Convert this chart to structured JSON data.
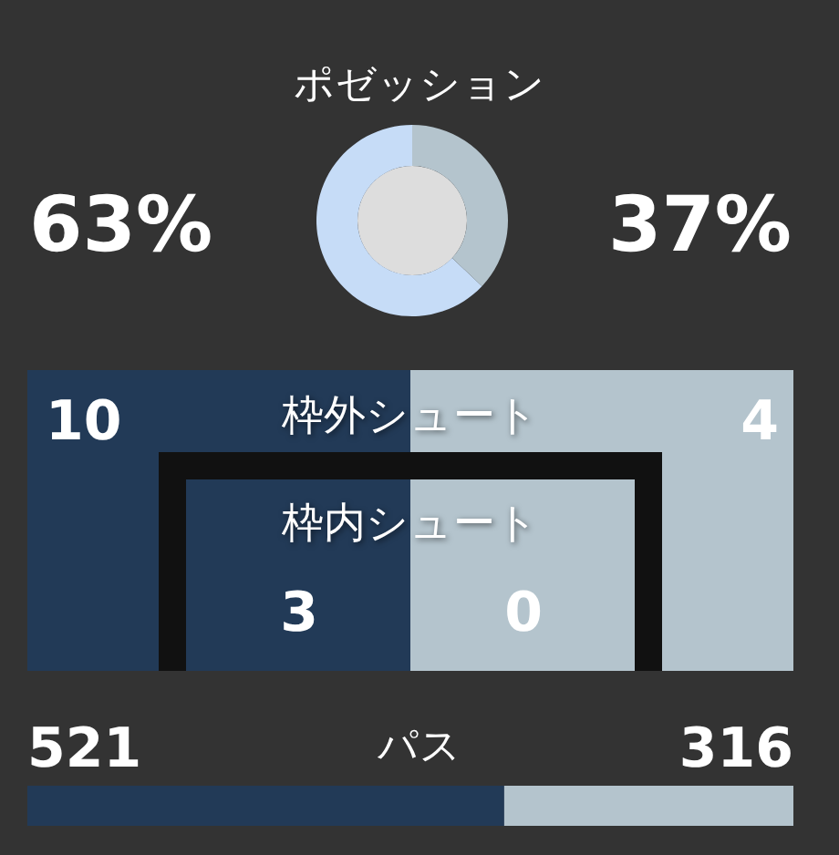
{
  "chart_data": [
    {
      "type": "donut",
      "title": "ポゼッション",
      "categories": [
        null,
        null
      ],
      "values": [
        63,
        37
      ],
      "colors": [
        "#c6dcf7",
        "#b4c4cd"
      ],
      "value_labels": [
        "63%",
        "37%"
      ]
    },
    {
      "type": "other",
      "categories": [
        "枠外シュート",
        "枠内シュート"
      ],
      "series": [
        {
          "color": "#223a57",
          "values": [
            10,
            3
          ]
        },
        {
          "color": "#b4c4cd",
          "values": [
            4,
            0
          ]
        }
      ],
      "data_labels": true
    },
    {
      "type": "bar",
      "title": "パス",
      "orientation": "horizontal",
      "stacked": true,
      "categories": [
        null
      ],
      "series": [
        {
          "color": "#223a57",
          "values": [
            521
          ]
        },
        {
          "color": "#b4c4cd",
          "values": [
            316
          ]
        }
      ],
      "data_labels": true
    }
  ]
}
